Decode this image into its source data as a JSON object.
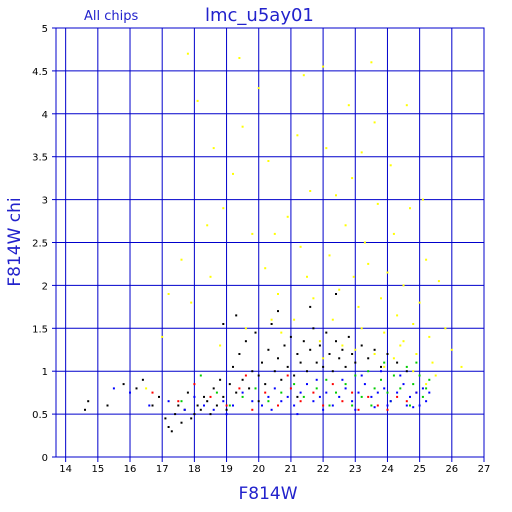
{
  "header": {
    "subtitle": "All chips",
    "title": "lmc_u5ay01"
  },
  "colors": {
    "grid": "#0000cc",
    "axis_text": "#3333cc",
    "series_colors": [
      "#ffff00",
      "#000000",
      "#00cc00",
      "#ff0000",
      "#0000ff"
    ]
  },
  "chart_data": {
    "type": "scatter",
    "title": "lmc_u5ay01",
    "subtitle": "All chips",
    "xlabel": "F814W",
    "ylabel": "F814W chi",
    "xlim": [
      13.7,
      27
    ],
    "ylim": [
      0,
      5
    ],
    "grid": true,
    "x_ticks": [
      "14",
      "15",
      "16",
      "17",
      "18",
      "19",
      "20",
      "21",
      "22",
      "23",
      "24",
      "25",
      "26",
      "27"
    ],
    "y_ticks": [
      "0",
      "0.5",
      "1",
      "1.5",
      "2",
      "2.5",
      "3",
      "3.5",
      "4",
      "4.5",
      "5"
    ],
    "series": [
      {
        "color": "#ffff00",
        "points": [
          [
            17.8,
            4.7
          ],
          [
            18.1,
            4.15
          ],
          [
            18.6,
            3.6
          ],
          [
            18.4,
            2.7
          ],
          [
            17.6,
            2.3
          ],
          [
            17.2,
            1.9
          ],
          [
            17.9,
            1.8
          ],
          [
            18.5,
            2.1
          ],
          [
            18.9,
            2.9
          ],
          [
            19.2,
            3.3
          ],
          [
            19.5,
            3.85
          ],
          [
            19.4,
            4.65
          ],
          [
            20.0,
            4.3
          ],
          [
            20.3,
            3.45
          ],
          [
            20.5,
            2.6
          ],
          [
            20.2,
            2.2
          ],
          [
            20.6,
            1.9
          ],
          [
            20.9,
            2.8
          ],
          [
            21.2,
            3.75
          ],
          [
            21.4,
            4.45
          ],
          [
            21.6,
            3.1
          ],
          [
            21.3,
            2.45
          ],
          [
            21.7,
            1.85
          ],
          [
            21.1,
            1.6
          ],
          [
            22.0,
            4.55
          ],
          [
            22.1,
            3.6
          ],
          [
            22.4,
            3.05
          ],
          [
            22.2,
            2.35
          ],
          [
            22.5,
            1.95
          ],
          [
            22.8,
            4.1
          ],
          [
            22.9,
            3.25
          ],
          [
            22.7,
            2.7
          ],
          [
            22.95,
            2.1
          ],
          [
            23.2,
            3.55
          ],
          [
            23.3,
            2.5
          ],
          [
            23.1,
            1.75
          ],
          [
            23.5,
            4.6
          ],
          [
            23.6,
            3.9
          ],
          [
            23.7,
            2.95
          ],
          [
            23.4,
            2.25
          ],
          [
            23.8,
            1.85
          ],
          [
            23.9,
            1.45
          ],
          [
            24.1,
            3.4
          ],
          [
            24.2,
            2.6
          ],
          [
            24.0,
            2.15
          ],
          [
            24.3,
            1.65
          ],
          [
            24.4,
            1.3
          ],
          [
            24.6,
            4.1
          ],
          [
            24.7,
            2.9
          ],
          [
            24.5,
            2.0
          ],
          [
            24.8,
            1.55
          ],
          [
            24.9,
            1.2
          ],
          [
            25.1,
            3.0
          ],
          [
            25.2,
            2.3
          ],
          [
            25.0,
            1.8
          ],
          [
            25.3,
            1.4
          ],
          [
            25.4,
            1.1
          ],
          [
            25.6,
            2.05
          ],
          [
            25.8,
            1.5
          ],
          [
            26.0,
            1.25
          ],
          [
            26.3,
            1.05
          ],
          [
            16.5,
            0.8
          ],
          [
            17.0,
            1.4
          ],
          [
            19.8,
            2.6
          ],
          [
            20.7,
            1.45
          ],
          [
            21.9,
            1.35
          ],
          [
            22.6,
            1.3
          ],
          [
            23.0,
            1.25
          ],
          [
            23.6,
            1.2
          ],
          [
            24.2,
            1.15
          ],
          [
            24.8,
            1.0
          ],
          [
            25.5,
            0.95
          ],
          [
            21.5,
            2.1
          ],
          [
            22.3,
            1.6
          ],
          [
            23.2,
            1.5
          ],
          [
            24.5,
            1.35
          ],
          [
            20.4,
            1.6
          ],
          [
            19.6,
            1.5
          ],
          [
            18.8,
            1.3
          ],
          [
            22.0,
            1.15
          ],
          [
            23.9,
            1.05
          ],
          [
            25.2,
            0.85
          ]
        ]
      },
      {
        "color": "#000000",
        "points": [
          [
            14.6,
            0.55
          ],
          [
            14.7,
            0.65
          ],
          [
            15.3,
            0.6
          ],
          [
            15.8,
            0.85
          ],
          [
            16.4,
            0.9
          ],
          [
            16.9,
            0.7
          ],
          [
            17.1,
            0.45
          ],
          [
            17.2,
            0.35
          ],
          [
            17.4,
            0.5
          ],
          [
            17.5,
            0.6
          ],
          [
            17.6,
            0.4
          ],
          [
            17.7,
            0.55
          ],
          [
            17.8,
            0.75
          ],
          [
            17.9,
            0.45
          ],
          [
            18.0,
            0.5
          ],
          [
            18.1,
            0.6
          ],
          [
            18.2,
            0.55
          ],
          [
            18.3,
            0.7
          ],
          [
            18.4,
            0.65
          ],
          [
            18.5,
            0.5
          ],
          [
            18.6,
            0.8
          ],
          [
            18.7,
            0.6
          ],
          [
            18.8,
            0.9
          ],
          [
            18.9,
            0.7
          ],
          [
            19.0,
            0.55
          ],
          [
            19.1,
            0.85
          ],
          [
            19.2,
            1.05
          ],
          [
            19.3,
            0.75
          ],
          [
            19.4,
            1.2
          ],
          [
            19.5,
            0.9
          ],
          [
            19.6,
            1.35
          ],
          [
            19.7,
            0.8
          ],
          [
            19.8,
            1.0
          ],
          [
            19.9,
            1.45
          ],
          [
            20.0,
            0.95
          ],
          [
            20.1,
            1.1
          ],
          [
            20.2,
            0.85
          ],
          [
            20.3,
            1.25
          ],
          [
            20.4,
            1.55
          ],
          [
            20.5,
            1.0
          ],
          [
            20.6,
            1.15
          ],
          [
            20.7,
            0.9
          ],
          [
            20.8,
            1.3
          ],
          [
            20.9,
            1.05
          ],
          [
            21.0,
            1.4
          ],
          [
            21.1,
            0.95
          ],
          [
            21.2,
            1.2
          ],
          [
            21.3,
            1.1
          ],
          [
            21.4,
            1.35
          ],
          [
            21.5,
            1.0
          ],
          [
            21.6,
            1.25
          ],
          [
            21.7,
            1.5
          ],
          [
            21.8,
            1.1
          ],
          [
            21.9,
            1.3
          ],
          [
            22.0,
            1.05
          ],
          [
            22.1,
            1.45
          ],
          [
            22.2,
            1.2
          ],
          [
            22.3,
            1.0
          ],
          [
            22.4,
            1.35
          ],
          [
            22.5,
            1.15
          ],
          [
            22.6,
            1.25
          ],
          [
            22.7,
            1.05
          ],
          [
            22.8,
            1.4
          ],
          [
            22.9,
            1.2
          ],
          [
            23.0,
            1.1
          ],
          [
            23.2,
            1.3
          ],
          [
            23.4,
            1.15
          ],
          [
            23.6,
            1.25
          ],
          [
            23.8,
            1.05
          ],
          [
            24.0,
            1.2
          ],
          [
            24.3,
            1.1
          ],
          [
            24.6,
            1.0
          ],
          [
            16.2,
            0.8
          ],
          [
            16.7,
            0.6
          ],
          [
            17.3,
            0.3
          ],
          [
            18.9,
            1.55
          ],
          [
            19.3,
            1.65
          ],
          [
            20.6,
            1.7
          ],
          [
            21.6,
            1.75
          ],
          [
            22.4,
            1.9
          ],
          [
            21.2,
            0.7
          ],
          [
            20.0,
            0.65
          ]
        ]
      },
      {
        "color": "#00cc00",
        "points": [
          [
            17.6,
            0.65
          ],
          [
            18.2,
            0.95
          ],
          [
            18.7,
            0.75
          ],
          [
            19.1,
            0.6
          ],
          [
            19.5,
            0.7
          ],
          [
            19.9,
            0.8
          ],
          [
            20.3,
            0.65
          ],
          [
            20.7,
            0.75
          ],
          [
            21.1,
            0.85
          ],
          [
            21.4,
            0.7
          ],
          [
            21.8,
            0.8
          ],
          [
            22.1,
            0.9
          ],
          [
            22.4,
            0.75
          ],
          [
            22.7,
            0.85
          ],
          [
            23.0,
            0.95
          ],
          [
            23.2,
            0.7
          ],
          [
            23.4,
            1.0
          ],
          [
            23.6,
            0.8
          ],
          [
            23.8,
            0.9
          ],
          [
            24.0,
            0.75
          ],
          [
            24.2,
            0.95
          ],
          [
            24.4,
            0.8
          ],
          [
            24.6,
            1.05
          ],
          [
            24.8,
            0.85
          ],
          [
            25.0,
            0.95
          ],
          [
            25.1,
            0.7
          ],
          [
            25.2,
            0.8
          ],
          [
            23.5,
            0.6
          ],
          [
            24.1,
            0.65
          ],
          [
            24.7,
            0.6
          ],
          [
            22.9,
            0.6
          ],
          [
            22.2,
            0.6
          ],
          [
            25.3,
            0.9
          ],
          [
            24.9,
            1.1
          ],
          [
            23.9,
            1.1
          ]
        ]
      },
      {
        "color": "#ff0000",
        "points": [
          [
            16.7,
            0.75
          ],
          [
            17.5,
            0.65
          ],
          [
            18.0,
            0.85
          ],
          [
            18.5,
            0.7
          ],
          [
            19.0,
            0.6
          ],
          [
            19.4,
            0.8
          ],
          [
            19.8,
            0.55
          ],
          [
            20.2,
            0.75
          ],
          [
            20.6,
            0.6
          ],
          [
            21.0,
            0.8
          ],
          [
            21.3,
            0.65
          ],
          [
            21.7,
            0.75
          ],
          [
            22.0,
            0.6
          ],
          [
            22.3,
            0.85
          ],
          [
            22.6,
            0.65
          ],
          [
            22.9,
            0.75
          ],
          [
            23.1,
            0.55
          ],
          [
            23.4,
            0.7
          ],
          [
            23.7,
            0.6
          ],
          [
            24.0,
            0.55
          ],
          [
            24.3,
            0.7
          ],
          [
            24.6,
            0.65
          ],
          [
            24.9,
            0.75
          ],
          [
            20.9,
            0.95
          ],
          [
            19.6,
            0.95
          ]
        ]
      },
      {
        "color": "#0000ff",
        "points": [
          [
            15.5,
            0.8
          ],
          [
            16.0,
            0.75
          ],
          [
            16.6,
            0.6
          ],
          [
            17.2,
            0.65
          ],
          [
            17.7,
            0.55
          ],
          [
            18.0,
            0.7
          ],
          [
            18.3,
            0.6
          ],
          [
            18.6,
            0.55
          ],
          [
            18.9,
            0.65
          ],
          [
            19.2,
            0.6
          ],
          [
            19.5,
            0.75
          ],
          [
            19.8,
            0.65
          ],
          [
            20.1,
            0.6
          ],
          [
            20.3,
            0.7
          ],
          [
            20.5,
            0.8
          ],
          [
            20.7,
            0.65
          ],
          [
            20.9,
            0.7
          ],
          [
            21.1,
            0.6
          ],
          [
            21.3,
            0.75
          ],
          [
            21.5,
            0.85
          ],
          [
            21.7,
            0.65
          ],
          [
            21.9,
            0.7
          ],
          [
            22.1,
            0.75
          ],
          [
            22.3,
            0.6
          ],
          [
            22.5,
            0.7
          ],
          [
            22.7,
            0.8
          ],
          [
            22.9,
            0.65
          ],
          [
            23.1,
            0.75
          ],
          [
            23.3,
            0.85
          ],
          [
            23.5,
            0.7
          ],
          [
            23.7,
            0.75
          ],
          [
            23.9,
            0.8
          ],
          [
            24.1,
            0.65
          ],
          [
            24.3,
            0.75
          ],
          [
            24.5,
            0.85
          ],
          [
            24.7,
            0.7
          ],
          [
            24.9,
            0.75
          ],
          [
            25.1,
            0.8
          ],
          [
            25.2,
            0.65
          ],
          [
            25.3,
            0.75
          ],
          [
            23.2,
            0.95
          ],
          [
            23.8,
            1.0
          ],
          [
            24.4,
            0.95
          ],
          [
            22.6,
            0.9
          ],
          [
            21.8,
            0.9
          ],
          [
            24.0,
            0.6
          ],
          [
            24.6,
            0.6
          ],
          [
            25.0,
            0.6
          ],
          [
            22.0,
            0.55
          ],
          [
            23.0,
            0.55
          ],
          [
            23.6,
            0.58
          ],
          [
            24.8,
            0.58
          ],
          [
            20.4,
            0.55
          ],
          [
            21.2,
            0.5
          ],
          [
            19.0,
            0.5
          ]
        ]
      }
    ]
  }
}
